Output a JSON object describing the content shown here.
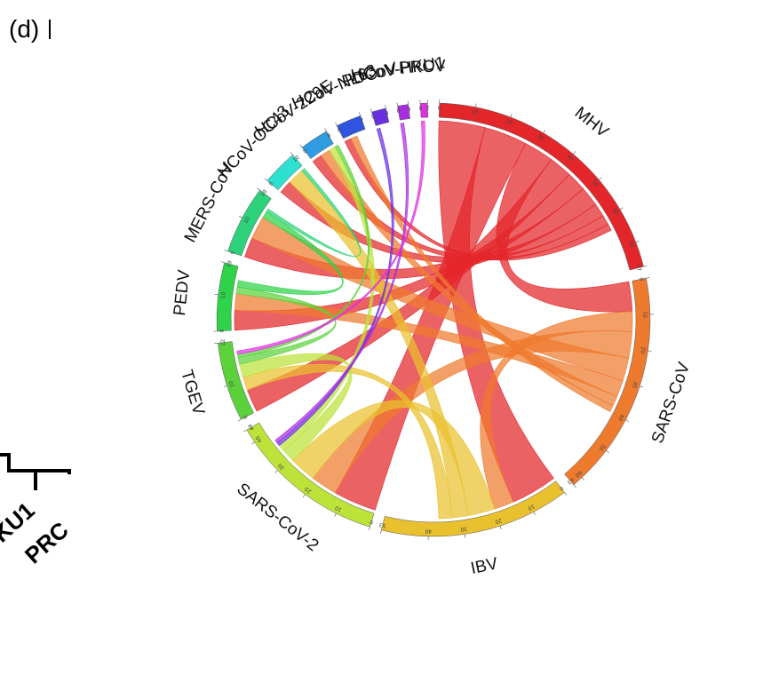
{
  "panel_label": "(d)",
  "cropped_fragment": {
    "labels": [
      "KU1",
      "PRC"
    ]
  },
  "segments": [
    {
      "name": "MHV",
      "size": 77,
      "color": "#e3262a",
      "ticks": [
        0,
        10,
        20,
        30,
        40,
        50,
        60,
        70,
        77
      ]
    },
    {
      "name": "SARS-CoV",
      "size": 63,
      "color": "#ee7a2e",
      "ticks": [
        0,
        10,
        20,
        30,
        40,
        50,
        60,
        63
      ]
    },
    {
      "name": "IBV",
      "size": 53,
      "color": "#e9c12e",
      "ticks": [
        0,
        10,
        20,
        30,
        40,
        53
      ]
    },
    {
      "name": "SARS-CoV-2",
      "size": 44,
      "color": "#bde23a",
      "ticks": [
        0,
        10,
        20,
        30,
        40,
        44
      ]
    },
    {
      "name": "TGEV",
      "size": 22,
      "color": "#5bd23a",
      "ticks": [
        0,
        10,
        22
      ]
    },
    {
      "name": "PEDV",
      "size": 19,
      "color": "#2fd34a",
      "ticks": [
        0,
        10,
        19
      ]
    },
    {
      "name": "MERS-CoV",
      "size": 19,
      "color": "#2dd27a",
      "ticks": [
        0,
        10,
        19
      ]
    },
    {
      "name": "HCoV-OC43",
      "size": 10,
      "color": "#2ee0d0",
      "ticks": [
        0,
        10
      ]
    },
    {
      "name": "HCoV-229E",
      "size": 8,
      "color": "#2f9be0",
      "ticks": [
        0,
        8
      ]
    },
    {
      "name": "HCoV-NL63",
      "size": 7,
      "color": "#2f55e0",
      "ticks": [
        0,
        7
      ]
    },
    {
      "name": "PDCoV",
      "size": 4,
      "color": "#6a2fe0",
      "ticks": [
        0,
        4
      ]
    },
    {
      "name": "HCoV-HKU1",
      "size": 3,
      "color": "#a82fe0",
      "ticks": [
        0,
        3
      ]
    },
    {
      "name": "PRCV",
      "size": 2,
      "color": "#e02fe0",
      "ticks": [
        0,
        2
      ]
    }
  ],
  "links": [
    {
      "source": "MHV",
      "target": "IBV",
      "value": 14
    },
    {
      "source": "MHV",
      "target": "SARS-CoV-2",
      "value": 13
    },
    {
      "source": "MHV",
      "target": "SARS-CoV",
      "value": 9
    },
    {
      "source": "MHV",
      "target": "TGEV",
      "value": 7
    },
    {
      "source": "MHV",
      "target": "PEDV",
      "value": 6
    },
    {
      "source": "MHV",
      "target": "MERS-CoV",
      "value": 6
    },
    {
      "source": "MHV",
      "target": "HCoV-OC43",
      "value": 4
    },
    {
      "source": "MHV",
      "target": "HCoV-229E",
      "value": 3
    },
    {
      "source": "MHV",
      "target": "HCoV-NL63",
      "value": 2
    },
    {
      "source": "SARS-CoV",
      "target": "IBV",
      "value": 6
    },
    {
      "source": "SARS-CoV",
      "target": "SARS-CoV-2",
      "value": 8
    },
    {
      "source": "SARS-CoV",
      "target": "MERS-CoV",
      "value": 7
    },
    {
      "source": "SARS-CoV",
      "target": "PEDV",
      "value": 5
    },
    {
      "source": "SARS-CoV",
      "target": "HCoV-229E",
      "value": 3
    },
    {
      "source": "SARS-CoV",
      "target": "HCoV-NL63",
      "value": 2
    },
    {
      "source": "IBV",
      "target": "SARS-CoV-2",
      "value": 8
    },
    {
      "source": "IBV",
      "target": "HCoV-OC43",
      "value": 5
    },
    {
      "source": "IBV",
      "target": "TGEV",
      "value": 4
    },
    {
      "source": "SARS-CoV-2",
      "target": "TGEV",
      "value": 4
    },
    {
      "source": "SARS-CoV-2",
      "target": "HCoV-229E",
      "value": 2
    },
    {
      "source": "TGEV",
      "target": "PEDV",
      "value": 2
    },
    {
      "source": "TGEV",
      "target": "HCoV-229E",
      "value": 1
    },
    {
      "source": "PEDV",
      "target": "MERS-CoV",
      "value": 2
    },
    {
      "source": "PDCoV",
      "target": "SARS-CoV-2",
      "value": 1
    },
    {
      "source": "HCoV-HKU1",
      "target": "SARS-CoV-2",
      "value": 1
    },
    {
      "source": "PRCV",
      "target": "TGEV",
      "value": 1
    },
    {
      "source": "MERS-CoV",
      "target": "HCoV-OC43",
      "value": 1
    }
  ]
}
